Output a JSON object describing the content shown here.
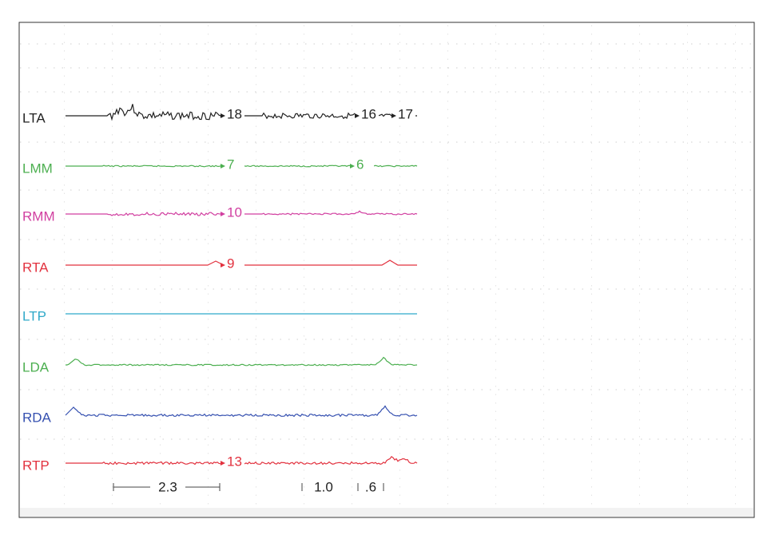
{
  "channels": [
    {
      "label": "LTA",
      "color": "#222222",
      "markers": [
        "18",
        "16",
        "17"
      ]
    },
    {
      "label": "LMM",
      "color": "#4caf50",
      "markers": [
        "7",
        "6"
      ]
    },
    {
      "label": "RMM",
      "color": "#d13fa0",
      "markers": [
        "10"
      ]
    },
    {
      "label": "RTA",
      "color": "#e2323f",
      "markers": [
        "9"
      ]
    },
    {
      "label": "LTP",
      "color": "#2fa9c9",
      "markers": []
    },
    {
      "label": "LDA",
      "color": "#4caf50",
      "markers": []
    },
    {
      "label": "RDA",
      "color": "#3550b0",
      "markers": []
    },
    {
      "label": "RTP",
      "color": "#e2323f",
      "markers": [
        "13"
      ]
    }
  ],
  "scale": {
    "labels": [
      "2.3",
      "1.0",
      ".6"
    ]
  }
}
